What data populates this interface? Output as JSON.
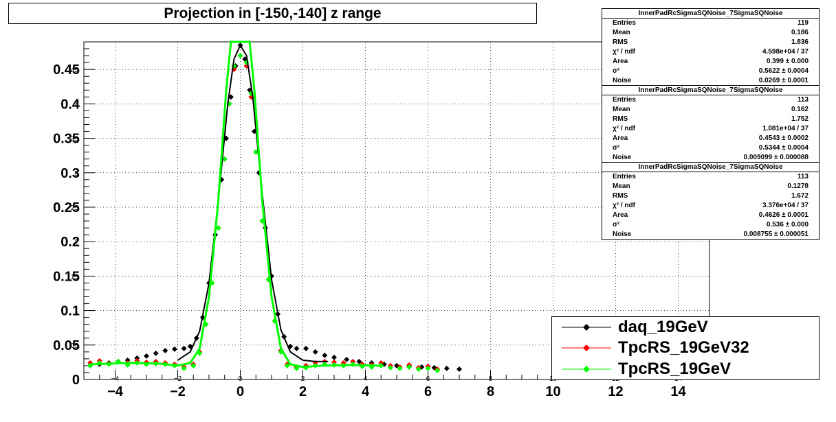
{
  "title": "Projection in [-150,-140] z range",
  "stats_boxes": [
    {
      "name": "InnerPadRcSigmaSQNoise_7SigmaSQNoise",
      "rows": [
        {
          "label": "Entries",
          "value": "119"
        },
        {
          "label": "Mean",
          "value": "0.186"
        },
        {
          "label": "RMS",
          "value": "1.836"
        },
        {
          "label": "χ² / ndf",
          "value": "4.598e+04 / 37"
        },
        {
          "label": "Area",
          "value": "0.399 ± 0.000"
        },
        {
          "label": "σ²",
          "value": "0.5622 ± 0.0004"
        },
        {
          "label": "Noise",
          "value": "0.0269 ± 0.0001"
        }
      ]
    },
    {
      "name": "InnerPadRcSigmaSQNoise_7SigmaSQNoise",
      "rows": [
        {
          "label": "Entries",
          "value": "113"
        },
        {
          "label": "Mean",
          "value": "0.162"
        },
        {
          "label": "RMS",
          "value": "1.752"
        },
        {
          "label": "χ² / ndf",
          "value": "1.081e+04 / 37"
        },
        {
          "label": "Area",
          "value": "0.4543 ± 0.0002"
        },
        {
          "label": "σ²",
          "value": "0.5344 ± 0.0004"
        },
        {
          "label": "Noise",
          "value": "0.009099 ± 0.000088"
        }
      ]
    },
    {
      "name": "InnerPadRcSigmaSQNoise_7SigmaSQNoise",
      "rows": [
        {
          "label": "Entries",
          "value": "113"
        },
        {
          "label": "Mean",
          "value": "0.1278"
        },
        {
          "label": "RMS",
          "value": "1.672"
        },
        {
          "label": "χ² / ndf",
          "value": "3.376e+04 / 37"
        },
        {
          "label": "Area",
          "value": "0.4626 ± 0.0001"
        },
        {
          "label": "σ²",
          "value": "0.536 ± 0.000"
        },
        {
          "label": "Noise",
          "value": "0.008755 ± 0.000051"
        }
      ]
    }
  ],
  "legend": [
    {
      "label": "daq_19GeV",
      "color": "#000000"
    },
    {
      "label": "TpcRS_19GeV32",
      "color": "#ff0000"
    },
    {
      "label": "TpcRS_19GeV",
      "color": "#00ff00"
    }
  ],
  "chart_data": {
    "type": "scatter",
    "xlim": [
      -5,
      15
    ],
    "ylim": [
      0,
      0.49
    ],
    "x_ticks": [
      -4,
      -2,
      0,
      2,
      4,
      6,
      8,
      10,
      12,
      14
    ],
    "x_tick_labels": [
      "−4",
      "−2",
      "0",
      "2",
      "4",
      "6",
      "8",
      "10",
      "12",
      "14"
    ],
    "x_small_labels": [
      "−4",
      "−2",
      "0",
      "2",
      "4",
      "6",
      "8",
      "10",
      "12",
      "14"
    ],
    "y_ticks": [
      0,
      0.05,
      0.1,
      0.15,
      0.2,
      0.25,
      0.3,
      0.35,
      0.4,
      0.45
    ],
    "y_tick_labels": [
      "0",
      "0.05",
      "0.1",
      "0.15",
      "0.2",
      "0.25",
      "0.3",
      "0.35",
      "0.4",
      "0.45"
    ],
    "y_small_labels": [
      "",
      "05",
      "1",
      "15",
      "2",
      "25",
      "3",
      "35",
      "4",
      "45"
    ],
    "grid": true,
    "legend_position": "bottom-right",
    "series": [
      {
        "name": "daq_19GeV",
        "color": "#000000",
        "points": [
          [
            -4.8,
            0.02
          ],
          [
            -4.5,
            0.022
          ],
          [
            -4.2,
            0.024
          ],
          [
            -3.9,
            0.026
          ],
          [
            -3.6,
            0.028
          ],
          [
            -3.3,
            0.031
          ],
          [
            -3.0,
            0.034
          ],
          [
            -2.7,
            0.038
          ],
          [
            -2.4,
            0.042
          ],
          [
            -2.1,
            0.044
          ],
          [
            -1.8,
            0.045
          ],
          [
            -1.6,
            0.048
          ],
          [
            -1.4,
            0.06
          ],
          [
            -1.2,
            0.09
          ],
          [
            -1.0,
            0.14
          ],
          [
            -0.8,
            0.21
          ],
          [
            -0.6,
            0.29
          ],
          [
            -0.45,
            0.35
          ],
          [
            -0.3,
            0.41
          ],
          [
            -0.15,
            0.455
          ],
          [
            0.0,
            0.485
          ],
          [
            0.15,
            0.465
          ],
          [
            0.3,
            0.42
          ],
          [
            0.45,
            0.36
          ],
          [
            0.6,
            0.3
          ],
          [
            0.8,
            0.22
          ],
          [
            1.0,
            0.15
          ],
          [
            1.2,
            0.095
          ],
          [
            1.4,
            0.062
          ],
          [
            1.6,
            0.048
          ],
          [
            1.8,
            0.045
          ],
          [
            2.1,
            0.045
          ],
          [
            2.4,
            0.04
          ],
          [
            2.7,
            0.035
          ],
          [
            3.0,
            0.032
          ],
          [
            3.4,
            0.029
          ],
          [
            3.8,
            0.026
          ],
          [
            4.2,
            0.024
          ],
          [
            4.6,
            0.022
          ],
          [
            5.0,
            0.02
          ],
          [
            5.4,
            0.019
          ],
          [
            5.8,
            0.018
          ],
          [
            6.2,
            0.017
          ],
          [
            6.6,
            0.016
          ],
          [
            7.0,
            0.015
          ]
        ],
        "fit": [
          [
            -2.0,
            0.028
          ],
          [
            -1.6,
            0.04
          ],
          [
            -1.3,
            0.07
          ],
          [
            -1.0,
            0.14
          ],
          [
            -0.7,
            0.26
          ],
          [
            -0.4,
            0.4
          ],
          [
            -0.2,
            0.465
          ],
          [
            0.0,
            0.485
          ],
          [
            0.2,
            0.47
          ],
          [
            0.4,
            0.41
          ],
          [
            0.7,
            0.27
          ],
          [
            1.0,
            0.145
          ],
          [
            1.3,
            0.072
          ],
          [
            1.6,
            0.04
          ],
          [
            2.0,
            0.028
          ],
          [
            2.4,
            0.026
          ],
          [
            2.8,
            0.026
          ]
        ]
      },
      {
        "name": "TpcRS_19GeV32",
        "color": "#ff0000",
        "points": [
          [
            -4.8,
            0.024
          ],
          [
            -4.5,
            0.027
          ],
          [
            -4.2,
            0.023
          ],
          [
            -3.9,
            0.026
          ],
          [
            -3.6,
            0.024
          ],
          [
            -3.3,
            0.027
          ],
          [
            -3.0,
            0.025
          ],
          [
            -2.7,
            0.026
          ],
          [
            -2.4,
            0.024
          ],
          [
            -2.1,
            0.022
          ],
          [
            -1.8,
            0.018
          ],
          [
            -1.5,
            0.022
          ],
          [
            -1.3,
            0.04
          ],
          [
            -1.1,
            0.08
          ],
          [
            -0.9,
            0.14
          ],
          [
            -0.7,
            0.22
          ],
          [
            -0.5,
            0.32
          ],
          [
            -0.35,
            0.4
          ],
          [
            -0.2,
            0.45
          ],
          [
            0.0,
            0.47
          ],
          [
            0.2,
            0.455
          ],
          [
            0.35,
            0.41
          ],
          [
            0.5,
            0.33
          ],
          [
            0.7,
            0.23
          ],
          [
            0.9,
            0.145
          ],
          [
            1.1,
            0.085
          ],
          [
            1.3,
            0.042
          ],
          [
            1.5,
            0.022
          ],
          [
            1.8,
            0.018
          ],
          [
            2.1,
            0.02
          ],
          [
            2.4,
            0.024
          ],
          [
            2.7,
            0.026
          ],
          [
            3.0,
            0.025
          ],
          [
            3.3,
            0.024
          ],
          [
            3.6,
            0.026
          ],
          [
            3.9,
            0.022
          ],
          [
            4.2,
            0.021
          ],
          [
            4.5,
            0.024
          ],
          [
            4.8,
            0.02
          ],
          [
            5.1,
            0.018
          ],
          [
            5.4,
            0.021
          ],
          [
            5.7,
            0.017
          ],
          [
            6.0,
            0.019
          ],
          [
            6.3,
            0.015
          ]
        ]
      },
      {
        "name": "TpcRS_19GeV",
        "color": "#00ff00",
        "points": [
          [
            -4.8,
            0.02
          ],
          [
            -4.5,
            0.024
          ],
          [
            -4.2,
            0.022
          ],
          [
            -3.9,
            0.026
          ],
          [
            -3.6,
            0.021
          ],
          [
            -3.3,
            0.024
          ],
          [
            -3.0,
            0.022
          ],
          [
            -2.7,
            0.023
          ],
          [
            -2.4,
            0.022
          ],
          [
            -2.1,
            0.02
          ],
          [
            -1.8,
            0.016
          ],
          [
            -1.5,
            0.02
          ],
          [
            -1.3,
            0.038
          ],
          [
            -1.1,
            0.08
          ],
          [
            -0.9,
            0.14
          ],
          [
            -0.7,
            0.22
          ],
          [
            -0.5,
            0.32
          ],
          [
            -0.35,
            0.4
          ],
          [
            -0.2,
            0.455
          ],
          [
            0.0,
            0.47
          ],
          [
            0.2,
            0.46
          ],
          [
            0.35,
            0.415
          ],
          [
            0.5,
            0.33
          ],
          [
            0.7,
            0.23
          ],
          [
            0.9,
            0.145
          ],
          [
            1.1,
            0.085
          ],
          [
            1.3,
            0.04
          ],
          [
            1.5,
            0.02
          ],
          [
            1.8,
            0.016
          ],
          [
            2.1,
            0.017
          ],
          [
            2.4,
            0.02
          ],
          [
            2.7,
            0.022
          ],
          [
            3.0,
            0.021
          ],
          [
            3.3,
            0.02
          ],
          [
            3.6,
            0.022
          ],
          [
            3.9,
            0.019
          ],
          [
            4.2,
            0.018
          ],
          [
            4.5,
            0.02
          ],
          [
            4.8,
            0.017
          ],
          [
            5.1,
            0.016
          ],
          [
            5.4,
            0.018
          ],
          [
            5.7,
            0.015
          ],
          [
            6.0,
            0.016
          ],
          [
            6.3,
            0.013
          ]
        ],
        "fit": [
          [
            -4.8,
            0.022
          ],
          [
            -3.5,
            0.024
          ],
          [
            -2.6,
            0.023
          ],
          [
            -2.0,
            0.02
          ],
          [
            -1.6,
            0.024
          ],
          [
            -1.3,
            0.045
          ],
          [
            -1.0,
            0.12
          ],
          [
            -0.7,
            0.26
          ],
          [
            -0.45,
            0.42
          ],
          [
            -0.3,
            0.49
          ],
          [
            0.3,
            0.49
          ],
          [
            0.45,
            0.42
          ],
          [
            0.7,
            0.26
          ],
          [
            1.0,
            0.12
          ],
          [
            1.3,
            0.045
          ],
          [
            1.6,
            0.022
          ],
          [
            2.0,
            0.018
          ],
          [
            2.6,
            0.02
          ],
          [
            3.5,
            0.021
          ],
          [
            4.5,
            0.02
          ]
        ]
      }
    ]
  }
}
